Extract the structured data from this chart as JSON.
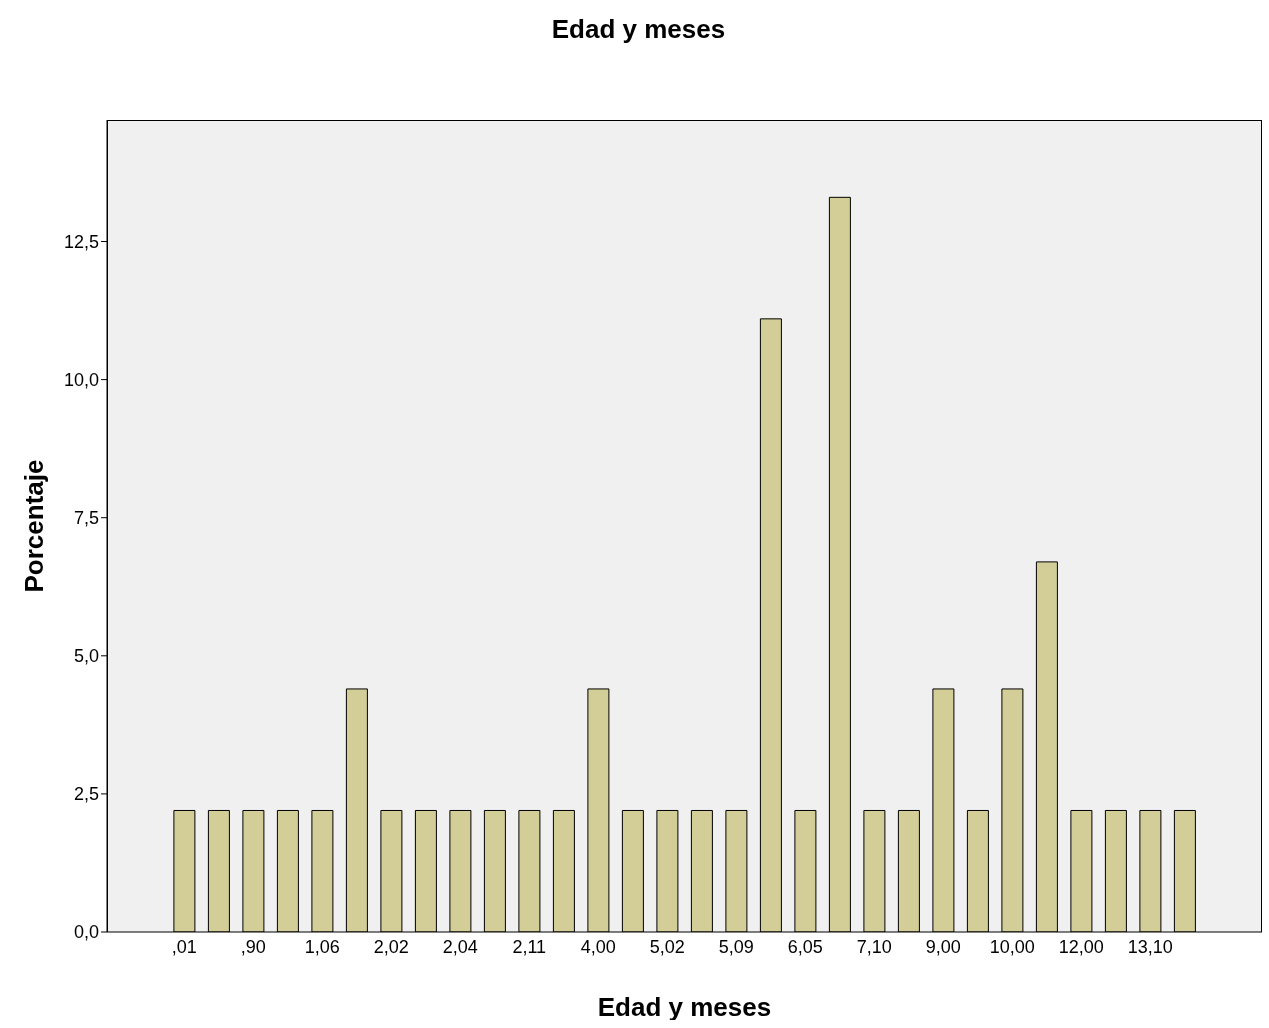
{
  "chart_data": {
    "type": "bar",
    "title": "Edad y meses",
    "xlabel": "Edad y meses",
    "ylabel": "Porcentaje",
    "categories": [
      ",01",
      null,
      ",90",
      null,
      "1,06",
      null,
      "2,02",
      null,
      "2,04",
      null,
      "2,11",
      null,
      "4,00",
      null,
      "5,02",
      null,
      "5,09",
      null,
      "6,05",
      null,
      "7,10",
      null,
      "9,00",
      null,
      "10,00",
      null,
      "12,00",
      null,
      "13,10",
      null
    ],
    "values": [
      2.2,
      2.2,
      2.2,
      2.2,
      2.2,
      4.4,
      2.2,
      2.2,
      2.2,
      2.2,
      2.2,
      2.2,
      4.4,
      2.2,
      2.2,
      2.2,
      2.2,
      11.1,
      2.2,
      13.3,
      2.2,
      2.2,
      4.4,
      2.2,
      4.4,
      6.7,
      2.2,
      2.2,
      2.2,
      2.2
    ],
    "color": "#d3ce98",
    "ylim": [
      0,
      14.7
    ],
    "yticks": [
      {
        "value": 0,
        "label": "0,0"
      },
      {
        "value": 2.5,
        "label": "2,5"
      },
      {
        "value": 5,
        "label": "5,0"
      },
      {
        "value": 7.5,
        "label": "7,5"
      },
      {
        "value": 10,
        "label": "10,0"
      },
      {
        "value": 12.5,
        "label": "12,5"
      }
    ],
    "grid": false,
    "legend": false
  }
}
